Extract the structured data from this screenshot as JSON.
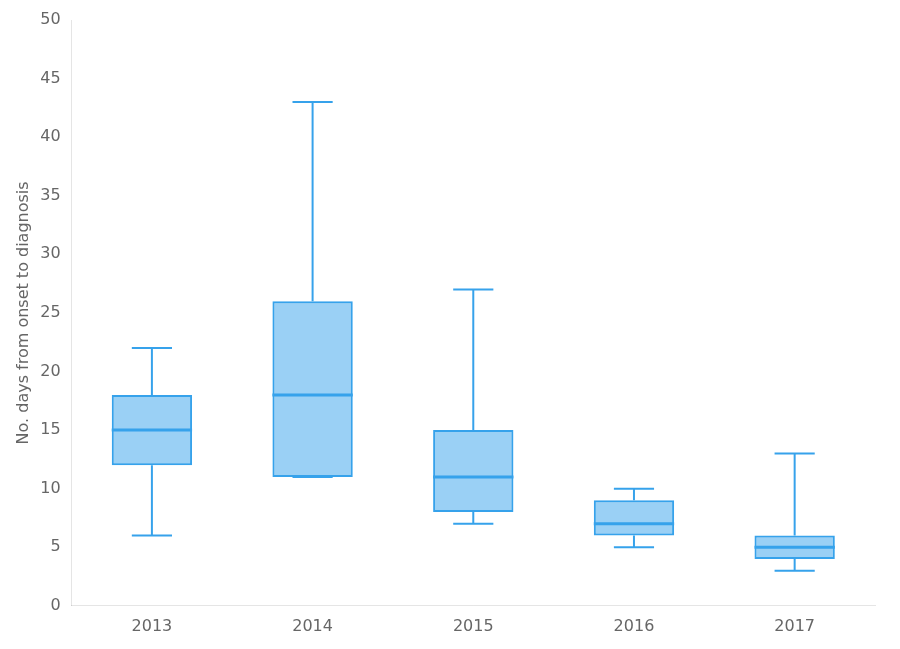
{
  "chart_data": {
    "type": "box",
    "categories": [
      "2013",
      "2014",
      "2015",
      "2016",
      "2017"
    ],
    "values": [
      {
        "whislo": 6,
        "q1": 12,
        "med": 15,
        "q3": 18,
        "whishi": 22
      },
      {
        "whislo": 11,
        "q1": 11,
        "med": 18,
        "q3": 26,
        "whishi": 43
      },
      {
        "whislo": 7,
        "q1": 8,
        "med": 11,
        "q3": 15,
        "whishi": 27
      },
      {
        "whislo": 5,
        "q1": 6,
        "med": 7,
        "q3": 9,
        "whishi": 10
      },
      {
        "whislo": 3,
        "q1": 4,
        "med": 5,
        "q3": 6,
        "whishi": 13
      }
    ],
    "ylabel": "No. days from onset to diagnosis",
    "ylim": [
      0,
      50
    ],
    "yticks": [
      0,
      5,
      10,
      15,
      20,
      25,
      30,
      35,
      40,
      45,
      50
    ],
    "grid": false
  }
}
